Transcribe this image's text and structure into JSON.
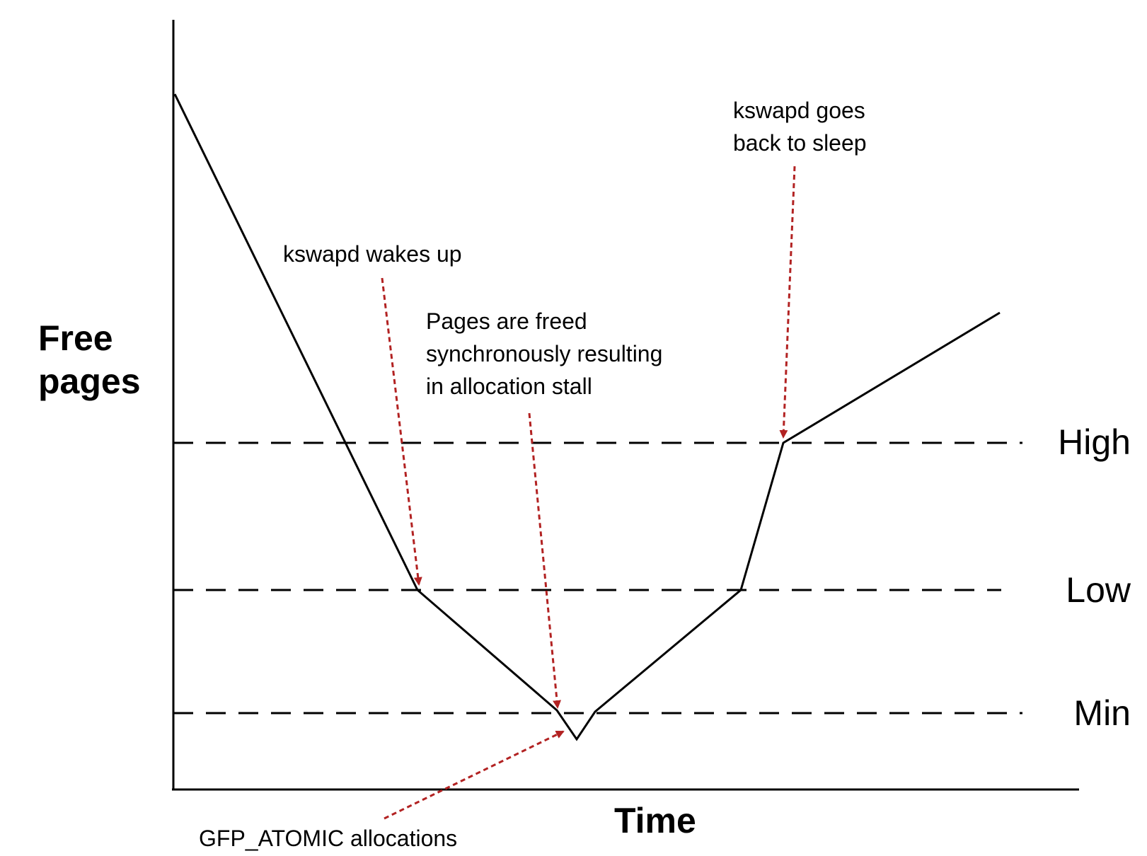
{
  "diagram": {
    "y_axis_title": [
      "Free",
      "pages"
    ],
    "x_axis_title": "Time",
    "levels": {
      "high": "High",
      "low": "Low",
      "min": "Min"
    },
    "annotations": {
      "kswapd_sleep": [
        "kswapd goes",
        "back to sleep"
      ],
      "kswapd_wake": "kswapd wakes up",
      "sync_free": [
        "Pages are freed",
        "synchronously resulting",
        "in allocation stall"
      ],
      "gfp_atomic": "GFP_ATOMIC allocations"
    },
    "colors": {
      "line": "#000000",
      "arrow": "#b22222"
    }
  }
}
